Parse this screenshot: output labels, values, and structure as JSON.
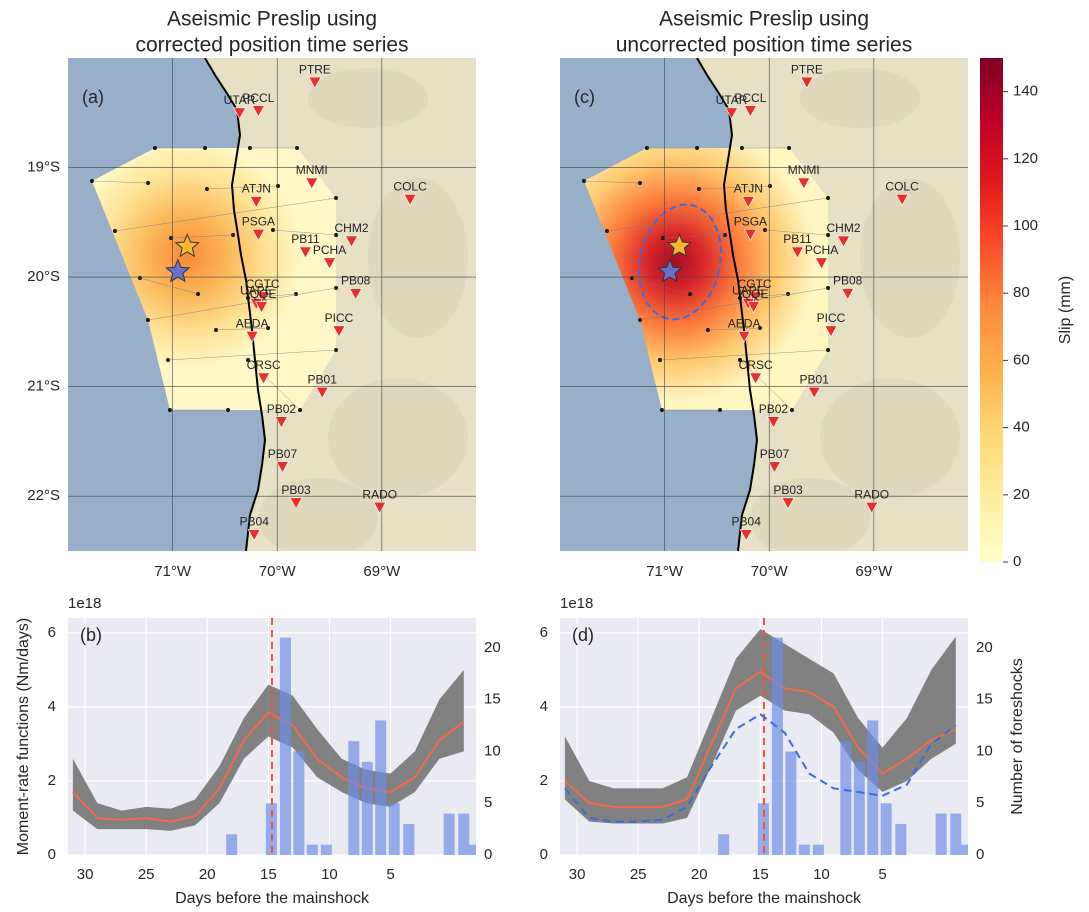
{
  "stations": [
    {
      "name": "PTRE",
      "lon": -69.64,
      "lat": -18.22
    },
    {
      "name": "PCCL",
      "lon": -70.18,
      "lat": -18.48
    },
    {
      "name": "UTAR",
      "lon": -70.36,
      "lat": -18.5
    },
    {
      "name": "MNMI",
      "lon": -69.67,
      "lat": -19.14
    },
    {
      "name": "ATJN",
      "lon": -70.2,
      "lat": -19.31
    },
    {
      "name": "COLC",
      "lon": -68.73,
      "lat": -19.29
    },
    {
      "name": "PSGA",
      "lon": -70.18,
      "lat": -19.61
    },
    {
      "name": "CHM2",
      "lon": -69.29,
      "lat": -19.67
    },
    {
      "name": "PB11",
      "lon": -69.73,
      "lat": -19.77
    },
    {
      "name": "PCHA",
      "lon": -69.5,
      "lat": -19.87
    },
    {
      "name": "PB08",
      "lon": -69.25,
      "lat": -20.15
    },
    {
      "name": "CGTC",
      "lon": -70.14,
      "lat": -20.18
    },
    {
      "name": "UAPE",
      "lon": -70.2,
      "lat": -20.24
    },
    {
      "name": "IQQE",
      "lon": -70.15,
      "lat": -20.27
    },
    {
      "name": "AEDA",
      "lon": -70.24,
      "lat": -20.54
    },
    {
      "name": "PICC",
      "lon": -69.41,
      "lat": -20.49
    },
    {
      "name": "CRSC",
      "lon": -70.13,
      "lat": -20.92
    },
    {
      "name": "PB01",
      "lon": -69.57,
      "lat": -21.05
    },
    {
      "name": "PB02",
      "lon": -69.96,
      "lat": -21.32
    },
    {
      "name": "PB07",
      "lon": -69.95,
      "lat": -21.73
    },
    {
      "name": "PB03",
      "lon": -69.82,
      "lat": -22.06
    },
    {
      "name": "RADO",
      "lon": -69.02,
      "lat": -22.1
    },
    {
      "name": "PB04",
      "lon": -70.22,
      "lat": -22.35
    }
  ],
  "station_color": "#e8302a",
  "chart_data": [
    {
      "type": "map",
      "panel_label": "(a)",
      "title": [
        "Aseismic Preslip using",
        "corrected position time series"
      ],
      "xlim": [
        -72,
        -68.1
      ],
      "ylim": [
        -22.5,
        -18.0
      ],
      "xticks": [
        {
          "value": -71,
          "label": "71°W"
        },
        {
          "value": -70,
          "label": "70°W"
        },
        {
          "value": -69,
          "label": "69°W"
        }
      ],
      "yticks": [
        {
          "value": -19,
          "label": "19°S"
        },
        {
          "value": -20,
          "label": "20°S"
        },
        {
          "value": -21,
          "label": "21°S"
        },
        {
          "value": -22,
          "label": "22°S"
        }
      ],
      "stars": [
        {
          "lon": -70.86,
          "lat": -19.72,
          "color": "#f5b82e"
        },
        {
          "lon": -70.95,
          "lat": -19.95,
          "color": "#6a70c8"
        }
      ]
    },
    {
      "type": "timeseries",
      "panel_label": "(b)",
      "x": [
        31,
        29,
        27,
        25,
        23,
        21,
        19,
        17,
        15,
        13,
        11,
        9,
        7,
        5,
        3,
        1,
        -1
      ],
      "band": {
        "color": "#6e6e6e",
        "lower": [
          1.2,
          0.7,
          0.7,
          0.7,
          0.65,
          0.8,
          1.4,
          2.6,
          3.2,
          2.9,
          2.1,
          1.7,
          1.4,
          1.3,
          1.7,
          2.6,
          2.8
        ],
        "upper": [
          2.6,
          1.4,
          1.2,
          1.3,
          1.25,
          1.5,
          2.4,
          3.7,
          4.6,
          4.3,
          3.4,
          2.6,
          2.3,
          2.2,
          2.8,
          4.2,
          5.0
        ]
      },
      "series": [
        {
          "color": "#f4694a",
          "values": [
            1.7,
            1.0,
            0.95,
            1.0,
            0.9,
            1.05,
            1.8,
            3.1,
            3.85,
            3.5,
            2.6,
            2.1,
            1.8,
            1.7,
            2.1,
            3.1,
            3.6
          ]
        }
      ],
      "bars": {
        "color": "#6f8fe6",
        "axis": "y2",
        "width": 0.9,
        "x": [
          18.0,
          14.75,
          13.6,
          12.5,
          11.4,
          10.25,
          8.0,
          6.9,
          5.8,
          4.7,
          3.5,
          0.2,
          -1.0,
          -1.9
        ],
        "values": [
          2,
          5,
          21,
          10,
          1,
          1,
          11,
          9,
          13,
          5,
          3,
          4,
          4,
          1
        ]
      },
      "vline": {
        "x": 14.7,
        "color": "#f0553e"
      },
      "xlim": [
        31.4,
        -2.0
      ],
      "xticks": [
        30,
        25,
        20,
        15,
        10,
        5
      ],
      "ylim": [
        0,
        6.4
      ],
      "yticks": [
        0,
        2,
        4,
        6
      ],
      "y_offset_label": "1e18",
      "y2lim": [
        0,
        22.9
      ],
      "y2ticks": [
        0,
        5,
        10,
        15,
        20
      ],
      "xlabel": "Days before the mainshock",
      "ylabel": "Moment-rate functions (Nm/days)",
      "grid": true
    },
    {
      "type": "map",
      "panel_label": "(c)",
      "title": [
        "Aseismic Preslip using",
        "uncorrected position time series"
      ],
      "xlim": [
        -72,
        -68.1
      ],
      "ylim": [
        -22.5,
        -18.0
      ],
      "xticks": [
        {
          "value": -71,
          "label": "71°W"
        },
        {
          "value": -70,
          "label": "70°W"
        },
        {
          "value": -69,
          "label": "69°W"
        }
      ],
      "ygrid": [
        -19,
        -20,
        -21,
        -22
      ],
      "stars": [
        {
          "lon": -70.86,
          "lat": -19.72,
          "color": "#f5b82e"
        },
        {
          "lon": -70.95,
          "lat": -19.95,
          "color": "#6a70c8"
        }
      ],
      "colorbar": {
        "label": "Slip (mm)",
        "lim": [
          0,
          150
        ],
        "ticks": [
          0,
          20,
          40,
          60,
          80,
          100,
          120,
          140
        ],
        "colors": [
          "#ffffcc",
          "#ffeda0",
          "#fed976",
          "#feb24c",
          "#fd8d3c",
          "#fc4e2a",
          "#e31a1c",
          "#bd0026",
          "#800026"
        ]
      }
    },
    {
      "type": "timeseries",
      "panel_label": "(d)",
      "x": [
        31,
        29,
        27,
        25,
        23,
        21,
        19,
        17,
        15,
        13,
        11,
        9,
        7,
        5,
        3,
        1,
        -1
      ],
      "band": {
        "color": "#6e6e6e",
        "lower": [
          1.5,
          0.9,
          0.85,
          0.85,
          0.85,
          1.0,
          2.4,
          3.9,
          4.3,
          3.9,
          3.8,
          3.3,
          2.3,
          1.7,
          2.0,
          2.6,
          3.0
        ],
        "upper": [
          3.2,
          2.0,
          1.8,
          1.8,
          1.8,
          2.1,
          3.7,
          5.3,
          6.1,
          5.7,
          5.3,
          4.9,
          3.7,
          2.9,
          3.7,
          5.0,
          5.9
        ]
      },
      "series": [
        {
          "color": "#f4694a",
          "values": [
            2.0,
            1.4,
            1.3,
            1.3,
            1.3,
            1.5,
            3.0,
            4.5,
            4.95,
            4.5,
            4.4,
            4.0,
            2.9,
            2.2,
            2.6,
            3.1,
            3.4
          ]
        },
        {
          "color": "#3c6be0",
          "dash": true,
          "values": [
            1.8,
            1.0,
            0.9,
            0.9,
            0.95,
            1.3,
            2.4,
            3.4,
            3.8,
            3.3,
            2.2,
            1.8,
            1.7,
            1.6,
            1.9,
            3.0,
            3.5
          ]
        }
      ],
      "bars": {
        "color": "#6f8fe6",
        "axis": "y2",
        "width": 0.9,
        "x": [
          18.0,
          14.75,
          13.6,
          12.5,
          11.4,
          10.25,
          8.0,
          6.9,
          5.8,
          4.7,
          3.5,
          0.2,
          -1.0,
          -1.9
        ],
        "values": [
          2,
          5,
          21,
          10,
          1,
          1,
          11,
          9,
          13,
          5,
          3,
          4,
          4,
          1
        ]
      },
      "vline": {
        "x": 14.7,
        "color": "#f0553e"
      },
      "xlim": [
        31.4,
        -2.0
      ],
      "xticks": [
        30,
        25,
        20,
        15,
        10,
        5
      ],
      "ylim": [
        0,
        6.4
      ],
      "yticks": [
        0,
        2,
        4,
        6
      ],
      "y_offset_label": "1e18",
      "y2lim": [
        0,
        22.9
      ],
      "y2ticks": [
        0,
        5,
        10,
        15,
        20
      ],
      "xlabel": "Days before the mainshock",
      "y2label": "Number of foreshocks",
      "grid": true
    }
  ]
}
